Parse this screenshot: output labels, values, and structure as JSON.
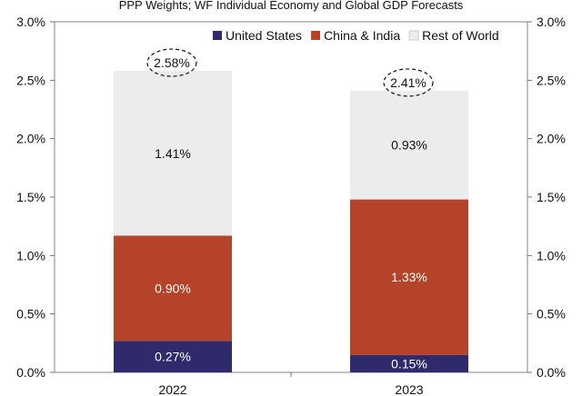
{
  "chart_data": {
    "type": "bar",
    "stacked": true,
    "title": "PPP Weights; WF Individual Economy and Global GDP Forecasts",
    "categories": [
      "2022",
      "2023"
    ],
    "series": [
      {
        "name": "United States",
        "values": [
          0.27,
          0.15
        ],
        "labels": [
          "0.27%",
          "0.15%"
        ],
        "color": "#2e2a6b",
        "label_color": "#ffffff"
      },
      {
        "name": "China & India",
        "values": [
          0.9,
          1.33
        ],
        "labels": [
          "0.90%",
          "1.33%"
        ],
        "color": "#b5432a",
        "label_color": "#ffffff"
      },
      {
        "name": "Rest of World",
        "values": [
          1.41,
          0.93
        ],
        "labels": [
          "1.41%",
          "0.93%"
        ],
        "color": "#ececee",
        "label_color": "#111111"
      }
    ],
    "totals": [
      2.58,
      2.41
    ],
    "total_labels": [
      "2.58%",
      "2.41%"
    ],
    "ylim": [
      0,
      3.0
    ],
    "yticks": [
      "0.0%",
      "0.5%",
      "1.0%",
      "1.5%",
      "2.0%",
      "2.5%",
      "3.0%"
    ],
    "ytick_values": [
      0,
      0.5,
      1.0,
      1.5,
      2.0,
      2.5,
      3.0
    ],
    "xlabel": "",
    "ylabel": "",
    "legend": "top-right",
    "grid": false
  }
}
